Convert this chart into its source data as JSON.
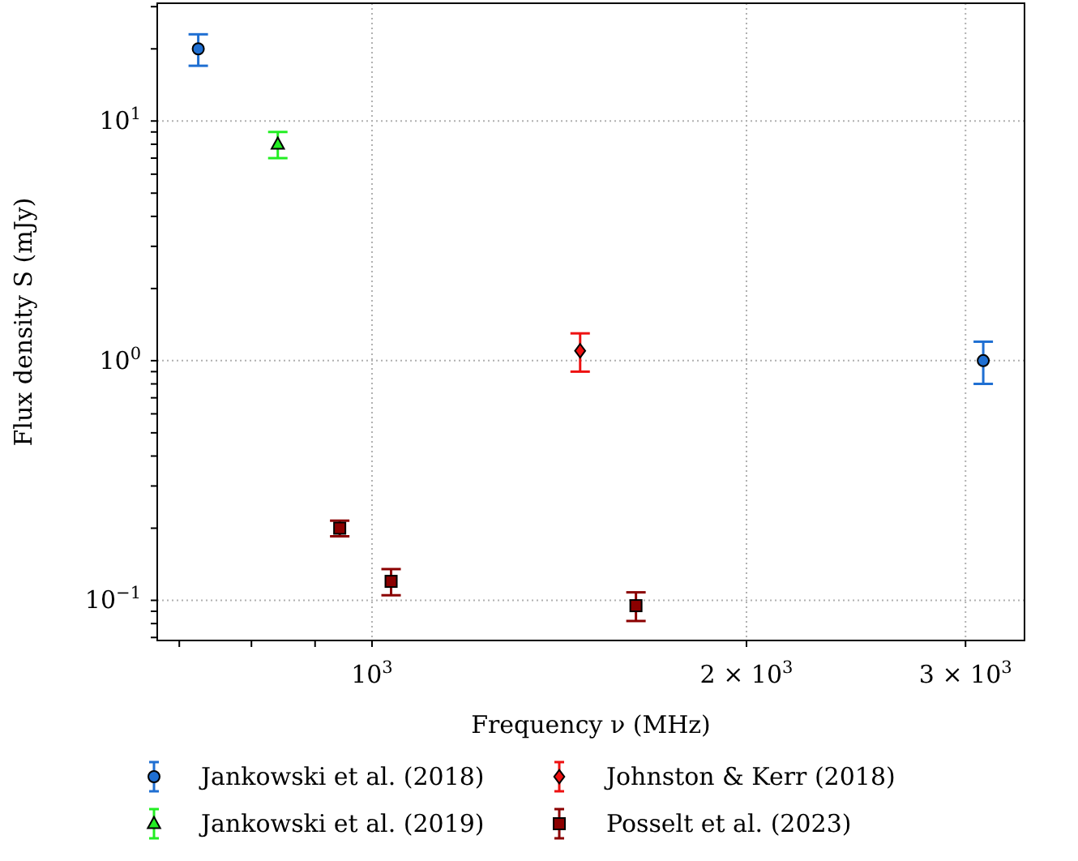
{
  "chart_data": {
    "type": "scatter",
    "xlabel": "Frequency ν (MHz)",
    "ylabel": "Flux density S (mJy)",
    "log": "xy",
    "grid": true,
    "legend": "bottom",
    "xlim": [
      672,
      3346
    ],
    "xticks": [
      {
        "value": 700,
        "label": null
      },
      {
        "value": 800,
        "label": null
      },
      {
        "value": 900,
        "label": null
      },
      {
        "value": 1000,
        "label": "10$^{3}$"
      },
      {
        "value": 2000,
        "label": "2 × 10$^{3}$"
      },
      {
        "value": 3000,
        "label": "3 × 10$^{3}$"
      }
    ],
    "ylim": [
      0.068,
      31
    ],
    "yticks": [
      {
        "value": 0.07,
        "label": null
      },
      {
        "value": 0.08,
        "label": null
      },
      {
        "value": 0.09,
        "label": null
      },
      {
        "value": 0.1,
        "label": "10$^{−1}$"
      },
      {
        "value": 0.2,
        "label": null
      },
      {
        "value": 0.3,
        "label": null
      },
      {
        "value": 0.4,
        "label": null
      },
      {
        "value": 0.5,
        "label": null
      },
      {
        "value": 0.6,
        "label": null
      },
      {
        "value": 0.7,
        "label": null
      },
      {
        "value": 0.8,
        "label": null
      },
      {
        "value": 0.9,
        "label": null
      },
      {
        "value": 1,
        "label": "10$^{0}$"
      },
      {
        "value": 2,
        "label": null
      },
      {
        "value": 3,
        "label": null
      },
      {
        "value": 4,
        "label": null
      },
      {
        "value": 5,
        "label": null
      },
      {
        "value": 6,
        "label": null
      },
      {
        "value": 7,
        "label": null
      },
      {
        "value": 8,
        "label": null
      },
      {
        "value": 9,
        "label": null
      },
      {
        "value": 10,
        "label": "10$^{1}$"
      },
      {
        "value": 20,
        "label": null
      },
      {
        "value": 30,
        "label": null
      }
    ],
    "series": [
      {
        "name": "Jankowski et al. (2018)",
        "color": "#1f6fd2",
        "marker": "circle",
        "x": [
          725,
          3100
        ],
        "values": [
          20,
          1.0
        ],
        "errors": [
          3,
          0.2
        ]
      },
      {
        "name": "Jankowski et al. (2019)",
        "color": "#22ee22",
        "marker": "triangle",
        "x": [
          840
        ],
        "values": [
          8
        ],
        "errors": [
          1
        ]
      },
      {
        "name": "Johnston & Kerr (2018)",
        "color": "#ee1111",
        "marker": "diamond",
        "x": [
          1470
        ],
        "values": [
          1.1
        ],
        "errors": [
          0.2
        ]
      },
      {
        "name": "Posselt et al. (2023)",
        "color": "#8b0000",
        "marker": "square",
        "x": [
          942,
          1036,
          1630
        ],
        "values": [
          0.2,
          0.12,
          0.095
        ],
        "errors": [
          0.015,
          0.015,
          0.013
        ]
      }
    ]
  }
}
